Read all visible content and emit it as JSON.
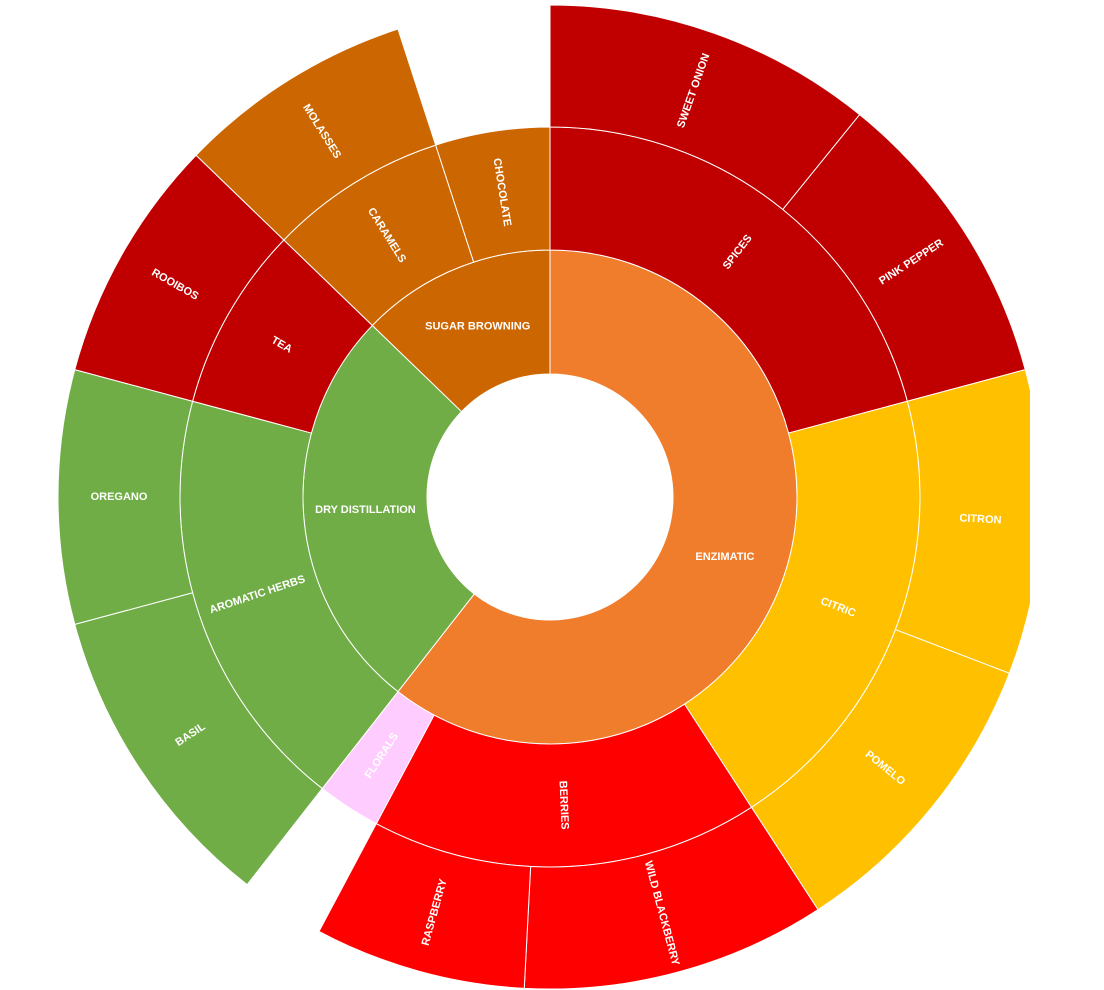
{
  "chart_data": {
    "type": "sunburst",
    "nodes": [
      {
        "name": "ENZIMATIC",
        "color": "#f07d2c",
        "value": 218,
        "children": [
          {
            "name": "SPICES",
            "color": "#c00000",
            "value": 75,
            "children": [
              {
                "name": "SWEET ONION",
                "color": "#c00000",
                "value": 39
              },
              {
                "name": "PINK PEPPER",
                "color": "#c00000",
                "value": 36
              }
            ]
          },
          {
            "name": "CITRIC",
            "color": "#ffc000",
            "value": 72,
            "children": [
              {
                "name": "CITRON",
                "color": "#ffc000",
                "value": 36
              },
              {
                "name": "POMELO",
                "color": "#ffc000",
                "value": 36
              }
            ]
          },
          {
            "name": "BERRIES",
            "color": "#ff0000",
            "value": 61,
            "children": [
              {
                "name": "WILD BLACKBERRY",
                "color": "#ff0000",
                "value": 36
              },
              {
                "name": "RASPBERRY",
                "color": "#ff0000",
                "value": 25
              }
            ]
          },
          {
            "name": "FLORALS",
            "color": "#ffccff",
            "value": 10
          }
        ]
      },
      {
        "name": "DRY DISTILLATION",
        "color": "#70ad47",
        "value": 96,
        "children": [
          {
            "name": "AROMATIC HERBS",
            "color": "#70ad47",
            "value": 67,
            "children": [
              {
                "name": "BASIL",
                "color": "#70ad47",
                "value": 37
              },
              {
                "name": "OREGANO",
                "color": "#70ad47",
                "value": 30
              }
            ]
          },
          {
            "name": "TEA",
            "color": "#c00000",
            "value": 29,
            "children": [
              {
                "name": "ROOIBOS",
                "color": "#c00000",
                "value": 29
              }
            ]
          }
        ]
      },
      {
        "name": "SUGAR BROWNING",
        "color": "#cc6600",
        "value": 46,
        "children": [
          {
            "name": "CARAMELS",
            "color": "#cc6600",
            "value": 28,
            "children": [
              {
                "name": "MOLASSES",
                "color": "#cc6600",
                "value": 28
              }
            ]
          },
          {
            "name": "CHOCOLATE",
            "color": "#cc6600",
            "value": 18
          }
        ]
      }
    ]
  }
}
